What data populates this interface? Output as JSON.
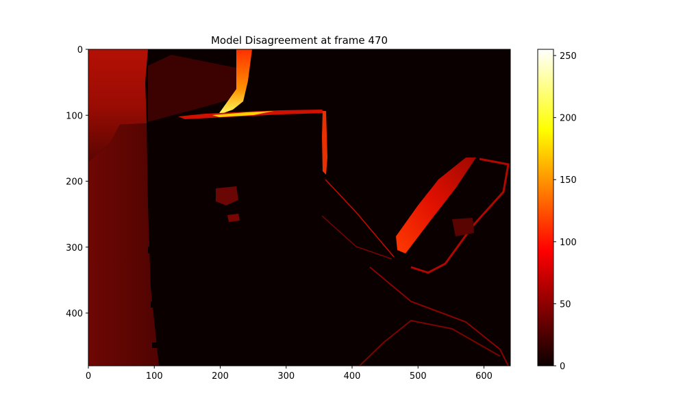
{
  "chart_data": {
    "type": "heatmap",
    "title": "Model Disagreement at frame 470",
    "colormap": "hot",
    "image_size": [
      640,
      480
    ],
    "xlim": [
      0,
      640
    ],
    "ylim": [
      480,
      0
    ],
    "x_ticks": [
      0,
      100,
      200,
      300,
      400,
      500,
      600
    ],
    "y_ticks": [
      0,
      100,
      200,
      300,
      400
    ],
    "colorbar": {
      "min": 0,
      "max": 255,
      "ticks": [
        0,
        50,
        100,
        150,
        200,
        250
      ]
    }
  }
}
